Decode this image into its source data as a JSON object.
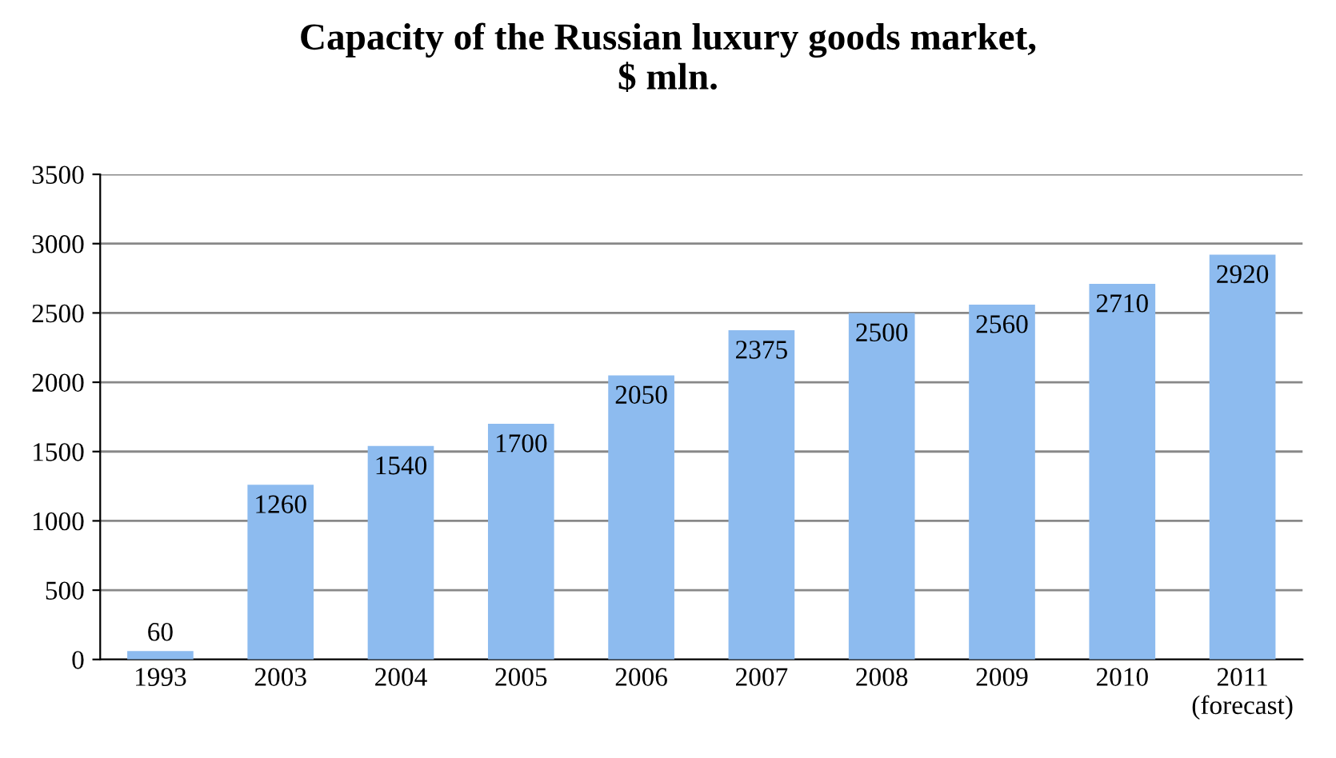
{
  "chart_data": {
    "type": "bar",
    "title": "Capacity of the Russian luxury goods market,\n$ mln.",
    "categories": [
      "1993",
      "2003",
      "2004",
      "2005",
      "2006",
      "2007",
      "2008",
      "2009",
      "2010",
      "2011\n(forecast)"
    ],
    "values": [
      60,
      1260,
      1540,
      1700,
      2050,
      2375,
      2500,
      2560,
      2710,
      2920
    ],
    "color": "#8dbbef",
    "ylim": [
      0,
      3500
    ],
    "yticks": [
      0,
      500,
      1000,
      1500,
      2000,
      2500,
      3000,
      3500
    ],
    "grid": "y",
    "data_labels": true
  }
}
